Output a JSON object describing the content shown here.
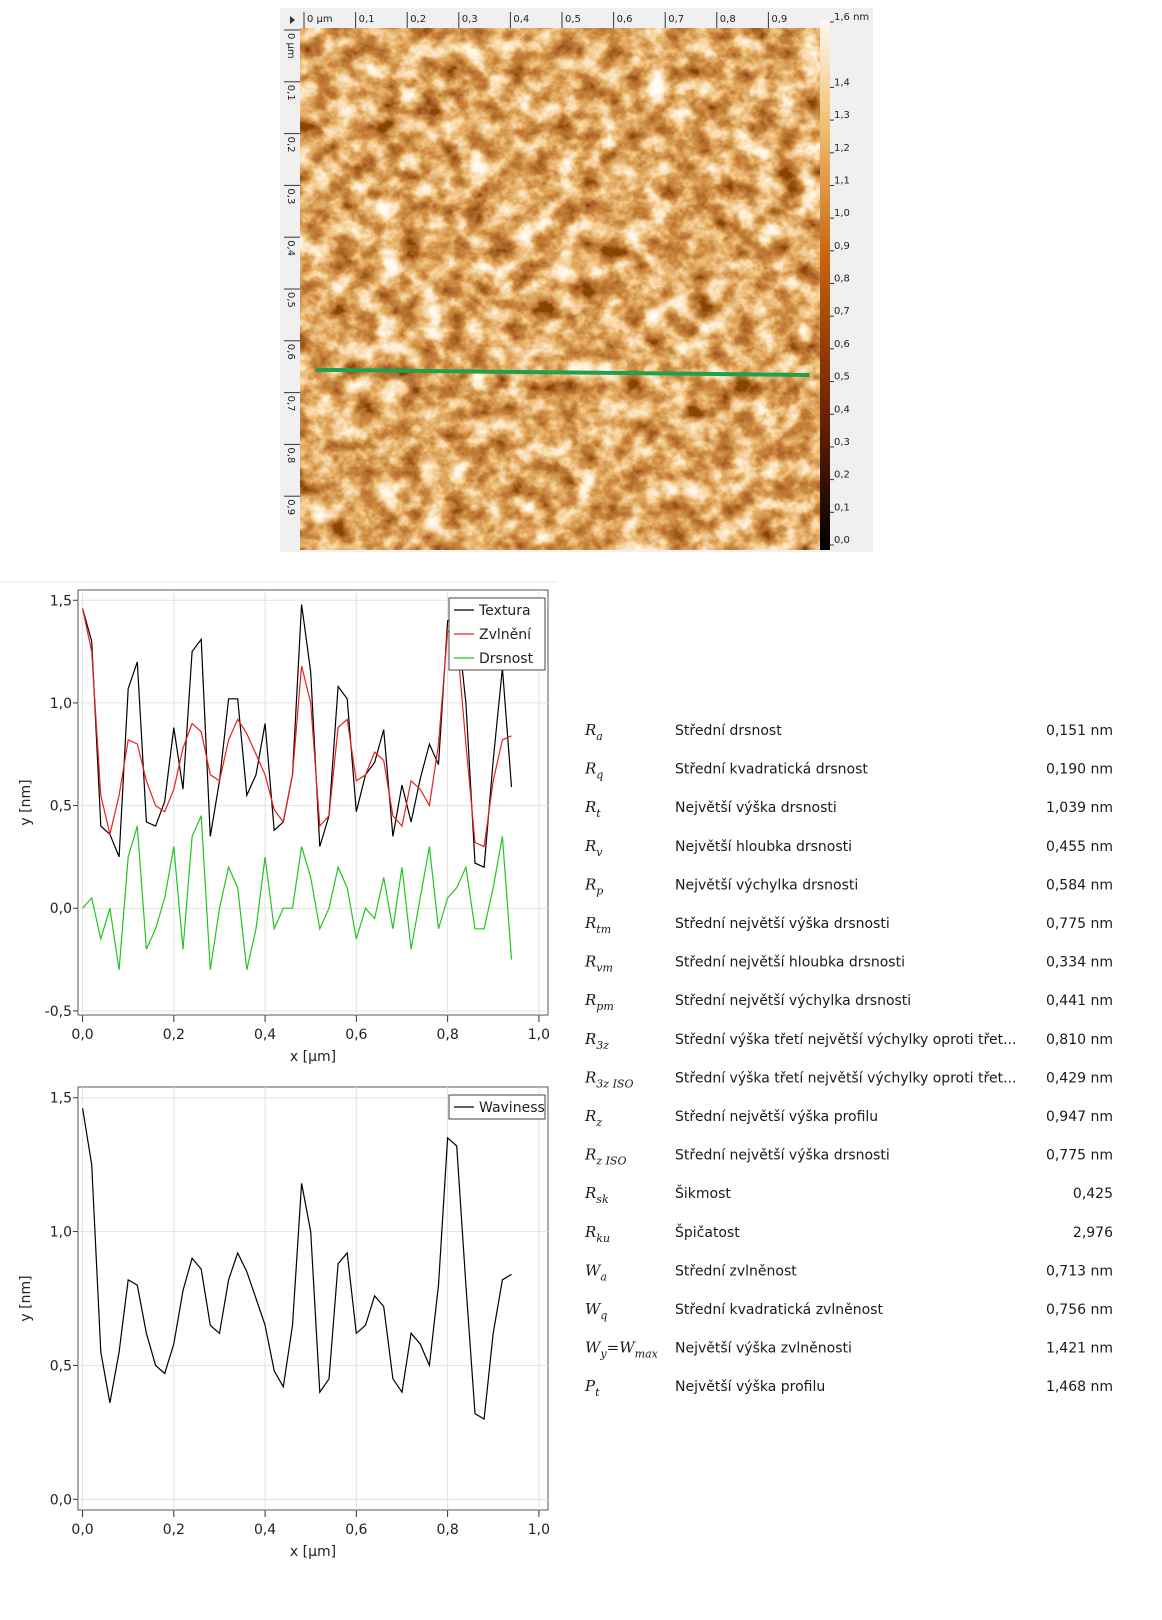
{
  "chart_data": [
    {
      "type": "heatmap",
      "xlim": [
        0,
        1
      ],
      "ylim": [
        0,
        1
      ],
      "xticks": [
        {
          "value": 0,
          "label": "0 µm"
        },
        {
          "value": 0.1,
          "label": "0,1"
        },
        {
          "value": 0.2,
          "label": "0,2"
        },
        {
          "value": 0.3,
          "label": "0,3"
        },
        {
          "value": 0.4,
          "label": "0,4"
        },
        {
          "value": 0.5,
          "label": "0,5"
        },
        {
          "value": 0.6,
          "label": "0,6"
        },
        {
          "value": 0.7,
          "label": "0,7"
        },
        {
          "value": 0.8,
          "label": "0,8"
        },
        {
          "value": 0.9,
          "label": "0,9"
        }
      ],
      "yticks": [
        {
          "value": 0,
          "label": "0 µm"
        },
        {
          "value": 0.1,
          "label": "0,1"
        },
        {
          "value": 0.2,
          "label": "0,2"
        },
        {
          "value": 0.3,
          "label": "0,3"
        },
        {
          "value": 0.4,
          "label": "0,4"
        },
        {
          "value": 0.5,
          "label": "0,5"
        },
        {
          "value": 0.6,
          "label": "0,6"
        },
        {
          "value": 0.7,
          "label": "0,7"
        },
        {
          "value": 0.8,
          "label": "0,8"
        },
        {
          "value": 0.9,
          "label": "0,9"
        }
      ],
      "colorbar": {
        "lim": [
          0,
          1.6
        ],
        "ticks": [
          {
            "value": 0,
            "label": "0,0"
          },
          {
            "value": 0.1,
            "label": "0,1"
          },
          {
            "value": 0.2,
            "label": "0,2"
          },
          {
            "value": 0.3,
            "label": "0,3"
          },
          {
            "value": 0.4,
            "label": "0,4"
          },
          {
            "value": 0.5,
            "label": "0,5"
          },
          {
            "value": 0.6,
            "label": "0,6"
          },
          {
            "value": 0.7,
            "label": "0,7"
          },
          {
            "value": 0.8,
            "label": "0,8"
          },
          {
            "value": 0.9,
            "label": "0,9"
          },
          {
            "value": 1.0,
            "label": "1,0"
          },
          {
            "value": 1.1,
            "label": "1,1"
          },
          {
            "value": 1.2,
            "label": "1,2"
          },
          {
            "value": 1.3,
            "label": "1,3"
          },
          {
            "value": 1.4,
            "label": "1,4"
          },
          {
            "value": 1.6,
            "label": "1,6 nm"
          }
        ]
      },
      "profile_line": {
        "x": [
          0.023,
          0.98
        ],
        "y": [
          0.656,
          0.666
        ],
        "color": "#1fa04e"
      }
    },
    {
      "type": "line",
      "x": [
        0,
        0.02,
        0.04,
        0.06,
        0.08,
        0.1,
        0.12,
        0.14,
        0.16,
        0.18,
        0.2,
        0.22,
        0.24,
        0.26,
        0.28,
        0.3,
        0.32,
        0.34,
        0.36,
        0.38,
        0.4,
        0.42,
        0.44,
        0.46,
        0.48,
        0.5,
        0.52,
        0.54,
        0.56,
        0.58,
        0.6,
        0.62,
        0.64,
        0.66,
        0.68,
        0.7,
        0.72,
        0.74,
        0.76,
        0.78,
        0.8,
        0.82,
        0.84,
        0.86,
        0.88,
        0.9,
        0.92,
        0.94
      ],
      "series": [
        {
          "name": "Textura",
          "color": "#000000",
          "values": [
            1.46,
            1.3,
            0.4,
            0.36,
            0.25,
            1.07,
            1.2,
            0.42,
            0.4,
            0.52,
            0.88,
            0.58,
            1.25,
            1.31,
            0.35,
            0.62,
            1.02,
            1.02,
            0.55,
            0.65,
            0.9,
            0.38,
            0.42,
            0.65,
            1.48,
            1.15,
            0.3,
            0.45,
            1.08,
            1.02,
            0.47,
            0.65,
            0.71,
            0.87,
            0.35,
            0.6,
            0.42,
            0.63,
            0.8,
            0.7,
            1.4,
            1.42,
            1.0,
            0.22,
            0.2,
            0.72,
            1.17,
            0.59
          ]
        },
        {
          "name": "Zvlnění",
          "color": "#e8201c",
          "values": [
            1.46,
            1.25,
            0.55,
            0.36,
            0.55,
            0.82,
            0.8,
            0.62,
            0.5,
            0.47,
            0.58,
            0.78,
            0.9,
            0.86,
            0.65,
            0.62,
            0.82,
            0.92,
            0.85,
            0.75,
            0.65,
            0.48,
            0.42,
            0.65,
            1.18,
            1.0,
            0.4,
            0.45,
            0.88,
            0.92,
            0.62,
            0.65,
            0.76,
            0.72,
            0.45,
            0.4,
            0.62,
            0.58,
            0.5,
            0.8,
            1.35,
            1.32,
            0.8,
            0.32,
            0.3,
            0.62,
            0.82,
            0.84
          ]
        },
        {
          "name": "Drsnost",
          "color": "#22c51e",
          "values": [
            0.0,
            0.05,
            -0.15,
            0.0,
            -0.3,
            0.25,
            0.4,
            -0.2,
            -0.1,
            0.05,
            0.3,
            -0.2,
            0.35,
            0.45,
            -0.3,
            0.0,
            0.2,
            0.1,
            -0.3,
            -0.1,
            0.25,
            -0.1,
            0.0,
            0.0,
            0.3,
            0.15,
            -0.1,
            0.0,
            0.2,
            0.1,
            -0.15,
            0.0,
            -0.05,
            0.15,
            -0.1,
            0.2,
            -0.2,
            0.05,
            0.3,
            -0.1,
            0.05,
            0.1,
            0.2,
            -0.1,
            -0.1,
            0.1,
            0.35,
            -0.25
          ]
        }
      ],
      "xlim": [
        -0.01,
        1.02
      ],
      "ylim": [
        -0.52,
        1.55
      ],
      "xticks": [
        {
          "value": 0,
          "label": "0,0"
        },
        {
          "value": 0.2,
          "label": "0,2"
        },
        {
          "value": 0.4,
          "label": "0,4"
        },
        {
          "value": 0.6,
          "label": "0,6"
        },
        {
          "value": 0.8,
          "label": "0,8"
        },
        {
          "value": 1.0,
          "label": "1,0"
        }
      ],
      "yticks": [
        {
          "value": -0.5,
          "label": "-0,5"
        },
        {
          "value": 0,
          "label": "0,0"
        },
        {
          "value": 0.5,
          "label": "0,5"
        },
        {
          "value": 1.0,
          "label": "1,0"
        },
        {
          "value": 1.5,
          "label": "1,5"
        }
      ],
      "xlabel": "x [µm]",
      "ylabel": "y [nm]",
      "grid": true,
      "legend": "upper right"
    },
    {
      "type": "line",
      "x": [
        0,
        0.02,
        0.04,
        0.06,
        0.08,
        0.1,
        0.12,
        0.14,
        0.16,
        0.18,
        0.2,
        0.22,
        0.24,
        0.26,
        0.28,
        0.3,
        0.32,
        0.34,
        0.36,
        0.38,
        0.4,
        0.42,
        0.44,
        0.46,
        0.48,
        0.5,
        0.52,
        0.54,
        0.56,
        0.58,
        0.6,
        0.62,
        0.64,
        0.66,
        0.68,
        0.7,
        0.72,
        0.74,
        0.76,
        0.78,
        0.8,
        0.82,
        0.84,
        0.86,
        0.88,
        0.9,
        0.92,
        0.94
      ],
      "series": [
        {
          "name": "Waviness",
          "color": "#000000",
          "values": [
            1.46,
            1.25,
            0.55,
            0.36,
            0.55,
            0.82,
            0.8,
            0.62,
            0.5,
            0.47,
            0.58,
            0.78,
            0.9,
            0.86,
            0.65,
            0.62,
            0.82,
            0.92,
            0.85,
            0.75,
            0.65,
            0.48,
            0.42,
            0.65,
            1.18,
            1.0,
            0.4,
            0.45,
            0.88,
            0.92,
            0.62,
            0.65,
            0.76,
            0.72,
            0.45,
            0.4,
            0.62,
            0.58,
            0.5,
            0.8,
            1.35,
            1.32,
            0.8,
            0.32,
            0.3,
            0.62,
            0.82,
            0.84
          ]
        }
      ],
      "xlim": [
        -0.01,
        1.02
      ],
      "ylim": [
        -0.04,
        1.54
      ],
      "xticks": [
        {
          "value": 0,
          "label": "0,0"
        },
        {
          "value": 0.2,
          "label": "0,2"
        },
        {
          "value": 0.4,
          "label": "0,4"
        },
        {
          "value": 0.6,
          "label": "0,6"
        },
        {
          "value": 0.8,
          "label": "0,8"
        },
        {
          "value": 1.0,
          "label": "1,0"
        }
      ],
      "yticks": [
        {
          "value": 0,
          "label": "0,0"
        },
        {
          "value": 0.5,
          "label": "0,5"
        },
        {
          "value": 1.0,
          "label": "1,0"
        },
        {
          "value": 1.5,
          "label": "1,5"
        }
      ],
      "xlabel": "x [µm]",
      "ylabel": "y [nm]",
      "grid": true,
      "legend": "upper right"
    }
  ],
  "table": {
    "rows": [
      {
        "symbol": "R",
        "sub": "a",
        "name": "Střední drsnost",
        "value": "0,151 nm"
      },
      {
        "symbol": "R",
        "sub": "q",
        "name": "Střední kvadratická drsnost",
        "value": "0,190 nm"
      },
      {
        "symbol": "R",
        "sub": "t",
        "name": "Největší výška drsnosti",
        "value": "1,039 nm"
      },
      {
        "symbol": "R",
        "sub": "v",
        "name": "Největší hloubka drsnosti",
        "value": "0,455 nm"
      },
      {
        "symbol": "R",
        "sub": "p",
        "name": "Největší výchylka drsnosti",
        "value": "0,584 nm"
      },
      {
        "symbol": "R",
        "sub": "tm",
        "name": "Střední největší výška drsnosti",
        "value": "0,775 nm"
      },
      {
        "symbol": "R",
        "sub": "vm",
        "name": "Střední největší hloubka drsnosti",
        "value": "0,334 nm"
      },
      {
        "symbol": "R",
        "sub": "pm",
        "name": "Střední největší výchylka drsnosti",
        "value": "0,441 nm"
      },
      {
        "symbol": "R",
        "sub": "3z",
        "name": "Střední výška třetí největší výchylky oproti třet...",
        "value": "0,810 nm"
      },
      {
        "symbol": "R",
        "sub": "3z ISO",
        "name": "Střední výška třetí největší výchylky oproti třet...",
        "value": "0,429 nm"
      },
      {
        "symbol": "R",
        "sub": "z",
        "name": "Střední největší výška profilu",
        "value": "0,947 nm"
      },
      {
        "symbol": "R",
        "sub": "z ISO",
        "name": "Střední největší výška drsnosti",
        "value": "0,775 nm"
      },
      {
        "symbol": "R",
        "sub": "sk",
        "name": "Šikmost",
        "value": "0,425"
      },
      {
        "symbol": "R",
        "sub": "ku",
        "name": "Špičatost",
        "value": "2,976"
      },
      {
        "symbol": "W",
        "sub": "a",
        "name": "Střední zvlněnost",
        "value": "0,713 nm"
      },
      {
        "symbol": "W",
        "sub": "q",
        "name": "Střední kvadratická zvlněnost",
        "value": "0,756 nm"
      },
      {
        "symbol": "W",
        "sub": "y",
        "symbol2": "=W",
        "sub2": "max",
        "name": "Největší výška zvlněnosti",
        "value": "1,421 nm"
      },
      {
        "symbol": "P",
        "sub": "t",
        "name": "Největší výška profilu",
        "value": "1,468 nm"
      }
    ]
  }
}
